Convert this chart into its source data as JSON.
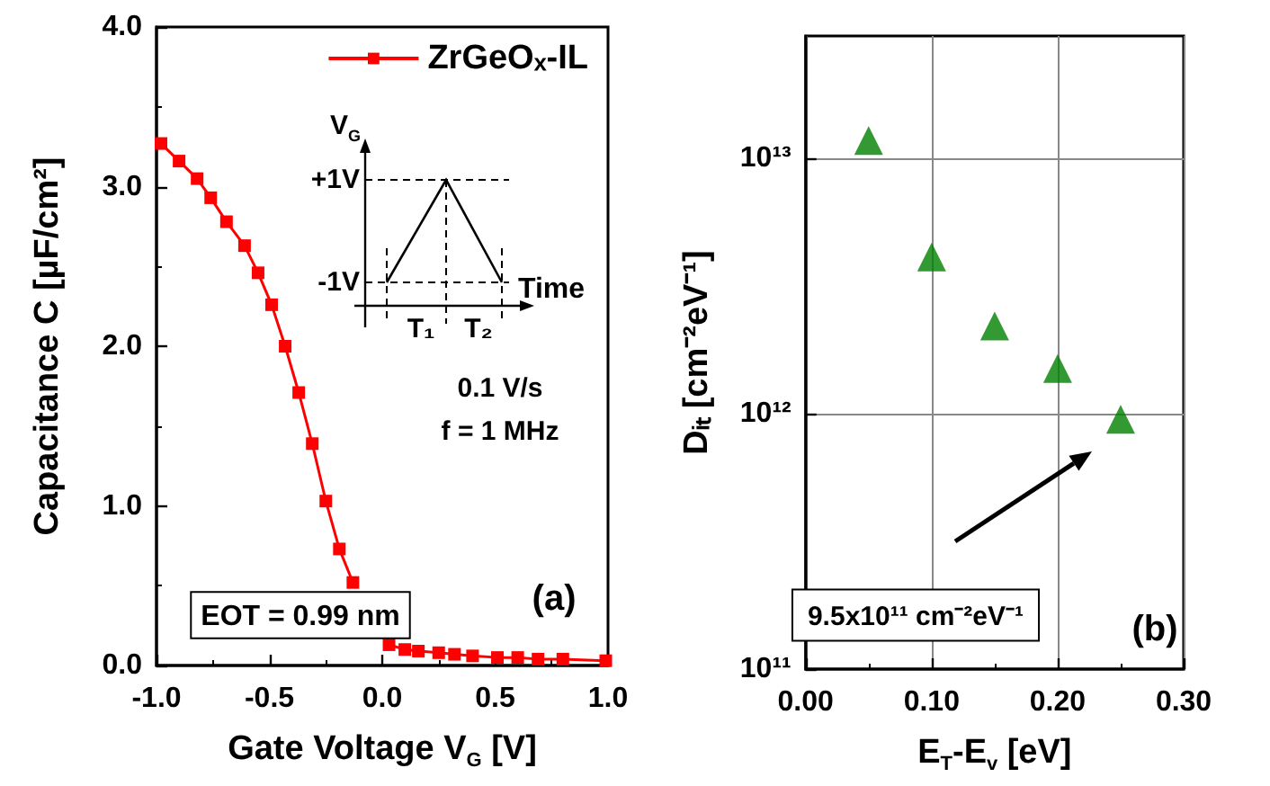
{
  "chart_data": [
    {
      "type": "line",
      "xlabel": "Gate Voltage V$_{G}$ [V]",
      "ylabel": "Capacitance C [µF/cm²]",
      "xlim": [
        -1,
        1
      ],
      "ylim": [
        0,
        4
      ],
      "xticks": [
        {
          "value": -1,
          "label": "-1.0"
        },
        {
          "value": -0.5,
          "label": "-0.5"
        },
        {
          "value": 0,
          "label": "0.0"
        },
        {
          "value": 0.5,
          "label": "0.5"
        },
        {
          "value": 1,
          "label": "1.0"
        }
      ],
      "yticks": [
        {
          "value": 0,
          "label": "0.0"
        },
        {
          "value": 1,
          "label": "1.0"
        },
        {
          "value": 2,
          "label": "2.0"
        },
        {
          "value": 3,
          "label": "3.0"
        },
        {
          "value": 4,
          "label": "4.0"
        }
      ],
      "legend": "top right",
      "marker": "square",
      "line_style": "solid",
      "series": [
        {
          "name": "ZrGeOₓ-IL",
          "color": "#ff0000",
          "x": [
            -0.98,
            -0.9,
            -0.82,
            -0.76,
            -0.69,
            -0.61,
            -0.55,
            -0.49,
            -0.43,
            -0.37,
            -0.31,
            -0.25,
            -0.19,
            -0.13,
            -0.05,
            0.03,
            0.1,
            0.16,
            0.25,
            0.32,
            0.4,
            0.51,
            0.6,
            0.69,
            0.8,
            0.99
          ],
          "values": [
            3.27,
            3.16,
            3.05,
            2.93,
            2.78,
            2.63,
            2.46,
            2.26,
            2.0,
            1.71,
            1.39,
            1.03,
            0.73,
            0.52,
            null,
            0.13,
            0.1,
            0.09,
            0.08,
            0.07,
            0.06,
            0.05,
            0.05,
            0.04,
            0.04,
            0.03
          ]
        }
      ],
      "annotations": [
        "V$_{G}$",
        "+1V",
        "-1V",
        "Time",
        "T₁",
        "T₂",
        "0.1 V/s",
        "f = 1 MHz",
        "EOT = 0.99 nm",
        "(a)"
      ]
    },
    {
      "type": "scatter",
      "xlabel": "E$_{T}$-E$_{v}$ [eV]",
      "ylabel": "Dᵢₜ [cm⁻²eV⁻¹]",
      "xlim": [
        0,
        0.3
      ],
      "ylim": [
        100000000000.0,
        30000000000000.0
      ],
      "log": "y",
      "grid": true,
      "marker": "triangle",
      "xticks": [
        {
          "value": 0,
          "label": "0.00"
        },
        {
          "value": 0.1,
          "label": "0.10"
        },
        {
          "value": 0.2,
          "label": "0.20"
        },
        {
          "value": 0.3,
          "label": "0.30"
        }
      ],
      "yticks": [
        {
          "value": 100000000000.0,
          "label": "10¹¹"
        },
        {
          "value": 1000000000000.0,
          "label": "10¹²"
        },
        {
          "value": 10000000000000.0,
          "label": "10¹³"
        }
      ],
      "series": [
        {
          "color": "#008000",
          "x": [
            0.05,
            0.1,
            0.15,
            0.2,
            0.25
          ],
          "values": [
            11700000000000.0,
            4100000000000.0,
            2200000000000.0,
            1500000000000.0,
            950000000000.0
          ]
        }
      ],
      "annotations": [
        "9.5x10¹¹ cm⁻²eV⁻¹",
        "(b)"
      ]
    }
  ]
}
